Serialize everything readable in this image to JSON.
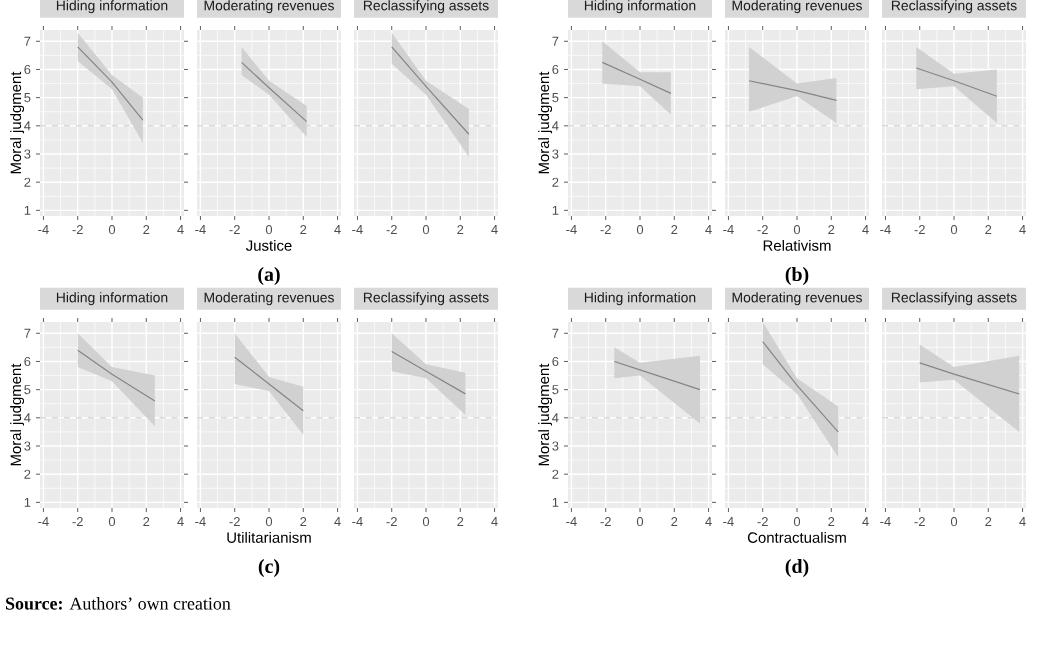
{
  "chart_data": [
    {
      "type": "line",
      "title": "Hiding information",
      "ylabel": "Moral judgment",
      "xlim": [
        -4.2,
        4.2
      ],
      "ylim": [
        0.8,
        7.4
      ],
      "xticks": [
        -4,
        -2,
        0,
        2,
        4
      ],
      "yticks": [
        1,
        2,
        3,
        4,
        5,
        6,
        7
      ],
      "grid": true,
      "ref_lines": [
        {
          "axis": "y",
          "value": 4,
          "color": "#c8c8c8",
          "line_style": "dashed"
        }
      ],
      "series": [
        {
          "color": "#858585",
          "x": [
            -2,
            0,
            1.8
          ],
          "values": [
            6.8,
            5.55,
            4.2
          ],
          "lower": [
            6.3,
            5.3,
            3.4
          ],
          "upper": [
            7.3,
            5.8,
            5.0
          ]
        }
      ]
    },
    {
      "type": "line",
      "title": "Moderating revenues",
      "xlabel": "Justice",
      "annotations": [
        "(a)"
      ],
      "tick_labels": "x",
      "xlim": [
        -4.2,
        4.2
      ],
      "ylim": [
        0.8,
        7.4
      ],
      "xticks": [
        -4,
        -2,
        0,
        2,
        4
      ],
      "yticks": [
        1,
        2,
        3,
        4,
        5,
        6,
        7
      ],
      "grid": true,
      "ref_lines": [
        {
          "axis": "y",
          "value": 4,
          "color": "#c8c8c8",
          "line_style": "dashed"
        }
      ],
      "series": [
        {
          "color": "#858585",
          "x": [
            -1.6,
            0,
            2.2
          ],
          "values": [
            6.25,
            5.35,
            4.15
          ],
          "lower": [
            5.8,
            5.1,
            3.6
          ],
          "upper": [
            6.8,
            5.6,
            4.7
          ]
        }
      ]
    },
    {
      "type": "line",
      "title": "Reclassifying assets",
      "tick_labels": "x",
      "xlim": [
        -4.2,
        4.2
      ],
      "ylim": [
        0.8,
        7.4
      ],
      "xticks": [
        -4,
        -2,
        0,
        2,
        4
      ],
      "yticks": [
        1,
        2,
        3,
        4,
        5,
        6,
        7
      ],
      "grid": true,
      "ref_lines": [
        {
          "axis": "y",
          "value": 4,
          "color": "#c8c8c8",
          "line_style": "dashed"
        }
      ],
      "series": [
        {
          "color": "#858585",
          "x": [
            -2,
            0,
            2.5
          ],
          "values": [
            6.8,
            5.4,
            3.7
          ],
          "lower": [
            6.2,
            5.1,
            2.9
          ],
          "upper": [
            7.3,
            5.6,
            4.6
          ]
        }
      ]
    },
    {
      "type": "line",
      "title": "Hiding information",
      "ylabel": "Moral judgment",
      "xlim": [
        -4.2,
        4.2
      ],
      "ylim": [
        0.8,
        7.4
      ],
      "xticks": [
        -4,
        -2,
        0,
        2,
        4
      ],
      "yticks": [
        1,
        2,
        3,
        4,
        5,
        6,
        7
      ],
      "grid": true,
      "ref_lines": [
        {
          "axis": "y",
          "value": 4,
          "color": "#c8c8c8",
          "line_style": "dashed"
        }
      ],
      "series": [
        {
          "color": "#858585",
          "x": [
            -2.2,
            0,
            1.8
          ],
          "values": [
            6.25,
            5.65,
            5.15
          ],
          "lower": [
            5.5,
            5.4,
            4.4
          ],
          "upper": [
            7.0,
            5.9,
            5.9
          ]
        }
      ]
    },
    {
      "type": "line",
      "title": "Moderating revenues",
      "xlabel": "Relativism",
      "annotations": [
        "(b)"
      ],
      "tick_labels": "x",
      "xlim": [
        -4.2,
        4.2
      ],
      "ylim": [
        0.8,
        7.4
      ],
      "xticks": [
        -4,
        -2,
        0,
        2,
        4
      ],
      "yticks": [
        1,
        2,
        3,
        4,
        5,
        6,
        7
      ],
      "grid": true,
      "ref_lines": [
        {
          "axis": "y",
          "value": 4,
          "color": "#c8c8c8",
          "line_style": "dashed"
        }
      ],
      "series": [
        {
          "color": "#858585",
          "x": [
            -2.8,
            0,
            2.3
          ],
          "values": [
            5.6,
            5.25,
            4.9
          ],
          "lower": [
            4.5,
            5.05,
            4.1
          ],
          "upper": [
            6.8,
            5.5,
            5.7
          ]
        }
      ]
    },
    {
      "type": "line",
      "title": "Reclassifying assets",
      "tick_labels": "x",
      "xlim": [
        -4.2,
        4.2
      ],
      "ylim": [
        0.8,
        7.4
      ],
      "xticks": [
        -4,
        -2,
        0,
        2,
        4
      ],
      "yticks": [
        1,
        2,
        3,
        4,
        5,
        6,
        7
      ],
      "grid": true,
      "ref_lines": [
        {
          "axis": "y",
          "value": 4,
          "color": "#c8c8c8",
          "line_style": "dashed"
        }
      ],
      "series": [
        {
          "color": "#858585",
          "x": [
            -2.2,
            0,
            2.5
          ],
          "values": [
            6.05,
            5.6,
            5.05
          ],
          "lower": [
            5.3,
            5.4,
            4.1
          ],
          "upper": [
            6.8,
            5.85,
            6.0
          ]
        }
      ]
    },
    {
      "type": "line",
      "title": "Hiding information",
      "ylabel": "Moral judgment",
      "annotations": [
        "**Source:** Authors’ own creation"
      ],
      "xlim": [
        -4.2,
        4.2
      ],
      "ylim": [
        0.8,
        7.4
      ],
      "xticks": [
        -4,
        -2,
        0,
        2,
        4
      ],
      "yticks": [
        1,
        2,
        3,
        4,
        5,
        6,
        7
      ],
      "grid": true,
      "ref_lines": [
        {
          "axis": "y",
          "value": 4,
          "color": "#c8c8c8",
          "line_style": "dashed"
        }
      ],
      "series": [
        {
          "color": "#858585",
          "x": [
            -2,
            0,
            2.5
          ],
          "values": [
            6.4,
            5.55,
            4.6
          ],
          "lower": [
            5.8,
            5.3,
            3.7
          ],
          "upper": [
            7.0,
            5.8,
            5.5
          ]
        }
      ]
    },
    {
      "type": "line",
      "title": "Moderating revenues",
      "xlabel": "Utilitarianism",
      "annotations": [
        "(c)"
      ],
      "tick_labels": "x",
      "xlim": [
        -4.2,
        4.2
      ],
      "ylim": [
        0.8,
        7.4
      ],
      "xticks": [
        -4,
        -2,
        0,
        2,
        4
      ],
      "yticks": [
        1,
        2,
        3,
        4,
        5,
        6,
        7
      ],
      "grid": true,
      "ref_lines": [
        {
          "axis": "y",
          "value": 4,
          "color": "#c8c8c8",
          "line_style": "dashed"
        }
      ],
      "series": [
        {
          "color": "#858585",
          "x": [
            -2,
            0,
            2
          ],
          "values": [
            6.15,
            5.2,
            4.25
          ],
          "lower": [
            5.2,
            4.95,
            3.4
          ],
          "upper": [
            7.0,
            5.45,
            5.1
          ]
        }
      ]
    },
    {
      "type": "line",
      "title": "Reclassifying assets",
      "tick_labels": "x",
      "xlim": [
        -4.2,
        4.2
      ],
      "ylim": [
        0.8,
        7.4
      ],
      "xticks": [
        -4,
        -2,
        0,
        2,
        4
      ],
      "yticks": [
        1,
        2,
        3,
        4,
        5,
        6,
        7
      ],
      "grid": true,
      "ref_lines": [
        {
          "axis": "y",
          "value": 4,
          "color": "#c8c8c8",
          "line_style": "dashed"
        }
      ],
      "series": [
        {
          "color": "#858585",
          "x": [
            -2,
            0,
            2.3
          ],
          "values": [
            6.35,
            5.65,
            4.85
          ],
          "lower": [
            5.65,
            5.4,
            4.1
          ],
          "upper": [
            7.0,
            5.9,
            5.6
          ]
        }
      ]
    },
    {
      "type": "line",
      "title": "Hiding information",
      "ylabel": "Moral judgment",
      "xlim": [
        -4.2,
        4.2
      ],
      "ylim": [
        0.8,
        7.4
      ],
      "xticks": [
        -4,
        -2,
        0,
        2,
        4
      ],
      "yticks": [
        1,
        2,
        3,
        4,
        5,
        6,
        7
      ],
      "grid": true,
      "ref_lines": [
        {
          "axis": "y",
          "value": 4,
          "color": "#c8c8c8",
          "line_style": "dashed"
        }
      ],
      "series": [
        {
          "color": "#858585",
          "x": [
            -1.5,
            0,
            3.5
          ],
          "values": [
            6.0,
            5.7,
            5.0
          ],
          "lower": [
            5.4,
            5.5,
            3.8
          ],
          "upper": [
            6.5,
            5.95,
            6.2
          ]
        }
      ]
    },
    {
      "type": "line",
      "title": "Moderating revenues",
      "xlabel": "Contractualism",
      "annotations": [
        "(d)"
      ],
      "tick_labels": "x",
      "xlim": [
        -4.2,
        4.2
      ],
      "ylim": [
        0.8,
        7.4
      ],
      "xticks": [
        -4,
        -2,
        0,
        2,
        4
      ],
      "yticks": [
        1,
        2,
        3,
        4,
        5,
        6,
        7
      ],
      "grid": true,
      "ref_lines": [
        {
          "axis": "y",
          "value": 4,
          "color": "#c8c8c8",
          "line_style": "dashed"
        }
      ],
      "series": [
        {
          "color": "#858585",
          "x": [
            -2,
            0,
            2.4
          ],
          "values": [
            6.7,
            5.15,
            3.5
          ],
          "lower": [
            5.9,
            4.85,
            2.6
          ],
          "upper": [
            7.4,
            5.4,
            4.4
          ]
        }
      ]
    },
    {
      "type": "line",
      "title": "Reclassifying assets",
      "tick_labels": "x",
      "xlim": [
        -4.2,
        4.2
      ],
      "ylim": [
        0.8,
        7.4
      ],
      "xticks": [
        -4,
        -2,
        0,
        2,
        4
      ],
      "yticks": [
        1,
        2,
        3,
        4,
        5,
        6,
        7
      ],
      "grid": true,
      "ref_lines": [
        {
          "axis": "y",
          "value": 4,
          "color": "#c8c8c8",
          "line_style": "dashed"
        }
      ],
      "series": [
        {
          "color": "#858585",
          "x": [
            -2,
            0,
            3.8
          ],
          "values": [
            5.95,
            5.55,
            4.85
          ],
          "lower": [
            5.25,
            5.35,
            3.5
          ],
          "upper": [
            6.6,
            5.8,
            6.2
          ]
        }
      ]
    }
  ]
}
